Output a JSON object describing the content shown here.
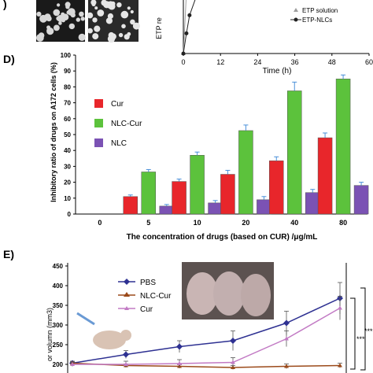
{
  "panel_top": {
    "ylabel_fragment": "ETP re",
    "xlabel": "Time (h)",
    "xticks": [
      "0",
      "12",
      "24",
      "36",
      "48",
      "60"
    ],
    "legend": [
      {
        "name": "ETP solution",
        "color": "#9e9e9e",
        "marker": "triangle"
      },
      {
        "name": "ETP-NLCs",
        "color": "#222222",
        "marker": "circle"
      }
    ]
  },
  "panel_d": {
    "letter": "D)",
    "xlabel": "The concentration of drugs (based on CUR) /μg/mL",
    "ylabel": "Inhibitory ratio of drugs on A172 cells (%)",
    "yticks": [
      "0",
      "10",
      "20",
      "30",
      "40",
      "50",
      "60",
      "70",
      "80",
      "90",
      "100"
    ]
  },
  "panel_e": {
    "letter": "E)",
    "ylabel_fragment": "or volumn (mm3)",
    "yticks": [
      "200",
      "250",
      "300",
      "350",
      "400",
      "450"
    ],
    "sig_labels": [
      "***",
      "***"
    ]
  },
  "chart_data": [
    {
      "type": "line",
      "panel": "top-right",
      "xlabel": "Time (h)",
      "ylabel": "ETP re",
      "xlim": [
        0,
        60
      ],
      "series": [
        {
          "name": "ETP solution",
          "color": "#9e9e9e",
          "x": [
            0,
            1,
            2
          ],
          "y": [
            0,
            60,
            100
          ]
        },
        {
          "name": "ETP-NLCs",
          "color": "#222222",
          "x": [
            0,
            1,
            2,
            4,
            6,
            8
          ],
          "y": [
            0,
            20,
            38,
            55,
            70,
            85
          ]
        }
      ]
    },
    {
      "type": "bar",
      "panel": "D",
      "categories": [
        "0",
        "5",
        "10",
        "20",
        "40",
        "80"
      ],
      "xlabel": "The concentration of drugs (based on CUR) /μg/mL",
      "ylabel": "Inhibitory ratio of drugs on A172 cells (%)",
      "ylim": [
        0,
        100
      ],
      "legend_position": "top-left",
      "series": [
        {
          "name": "Cur",
          "color": "#e8262b",
          "values": [
            0,
            11,
            20.5,
            25,
            33.5,
            48
          ],
          "errors": [
            0,
            1,
            1.5,
            2.5,
            2.5,
            3
          ]
        },
        {
          "name": "NLC-Cur",
          "color": "#5cc23c",
          "values": [
            0,
            26.5,
            37,
            52.5,
            77.5,
            85
          ],
          "errors": [
            0,
            1.5,
            2,
            3.5,
            5.5,
            2.5
          ]
        },
        {
          "name": "NLC",
          "color": "#7b52b4",
          "values": [
            0,
            5,
            7,
            9,
            13.5,
            18
          ],
          "errors": [
            0,
            1,
            1.5,
            2,
            2,
            2
          ]
        }
      ]
    },
    {
      "type": "line",
      "panel": "E",
      "ylabel": "or volumn (mm3)",
      "ylim": [
        200,
        450
      ],
      "legend_position": "top-left",
      "series": [
        {
          "name": "PBS",
          "color": "#2e3192",
          "x": [
            0,
            1,
            2,
            3,
            4,
            5
          ],
          "y": [
            203,
            225,
            245,
            260,
            305,
            368
          ],
          "errors": [
            5,
            10,
            15,
            25,
            30,
            40
          ]
        },
        {
          "name": "NLC-Cur",
          "color": "#9b4a1a",
          "x": [
            0,
            1,
            2,
            3,
            4,
            5
          ],
          "y": [
            203,
            197,
            195,
            192,
            195,
            197
          ],
          "errors": [
            3,
            4,
            5,
            5,
            6,
            6
          ]
        },
        {
          "name": "Cur",
          "color": "#c27ac4",
          "x": [
            0,
            1,
            2,
            3,
            4,
            5
          ],
          "y": [
            200,
            200,
            202,
            205,
            265,
            343
          ],
          "errors": [
            5,
            8,
            10,
            12,
            20,
            30
          ]
        }
      ]
    }
  ]
}
